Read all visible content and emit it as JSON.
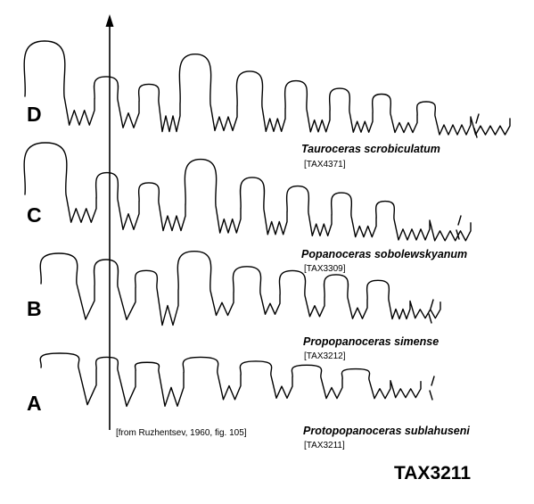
{
  "figure": {
    "rows": [
      {
        "letter": "D",
        "species": "Tauroceras scrobiculatum",
        "tax": "[TAX4371]"
      },
      {
        "letter": "C",
        "species": "Popanoceras sobolewskyanum",
        "tax": "[TAX3309]"
      },
      {
        "letter": "B",
        "species": "Propopanoceras simense",
        "tax": "[TAX3212]"
      },
      {
        "letter": "A",
        "species": "Protopopanoceras sublahuseni",
        "tax": "[TAX3211]"
      }
    ],
    "source_note": "[from Ruzhentsev, 1960, fig. 105]",
    "figure_id": "TAX3211"
  }
}
